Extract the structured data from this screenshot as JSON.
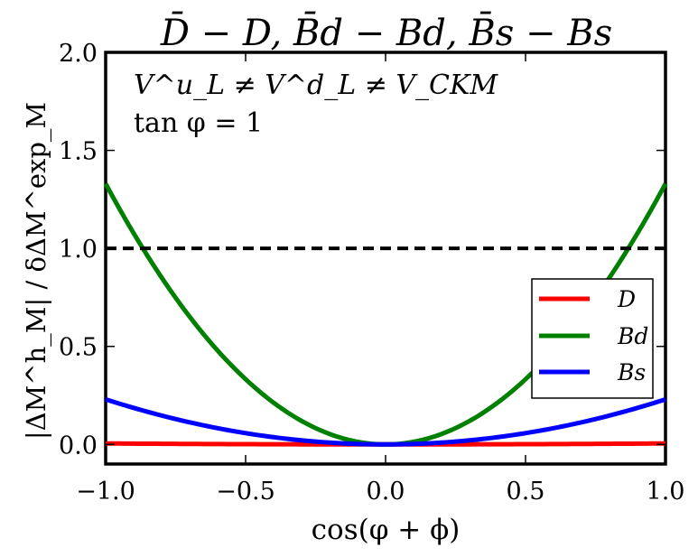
{
  "chart_data": {
    "type": "line",
    "title": "D̄ − D, B̄d − Bd, B̄s − Bs",
    "xlabel": "cos(φ + ϕ)",
    "ylabel": "|ΔM^h_M| / δΔM^exp_M",
    "xlim": [
      -1.0,
      1.0
    ],
    "ylim": [
      -0.1,
      2.0
    ],
    "x_ticks": [
      "−1.0",
      "−0.5",
      "0.0",
      "0.5",
      "1.0"
    ],
    "y_ticks": [
      "0.0",
      "0.5",
      "1.0",
      "1.5",
      "2.0"
    ],
    "grid": false,
    "annotations": [
      "V^u_L ≠ V^d_L ≠ V_CKM",
      "tan φ = 1"
    ],
    "reference_line": {
      "y": 1.0,
      "style": "dashed",
      "color": "#000000"
    },
    "legend": {
      "placement": "center-right"
    },
    "series": [
      {
        "name": "D",
        "color": "#ff0000",
        "x": [
          -1.0,
          -0.5,
          0.0,
          0.5,
          1.0
        ],
        "y": [
          0.005,
          0.0012,
          0.0,
          0.0012,
          0.005
        ]
      },
      {
        "name": "Bd",
        "color": "#008000",
        "x": [
          -1.0,
          -0.75,
          -0.5,
          -0.25,
          0.0,
          0.25,
          0.5,
          0.75,
          1.0
        ],
        "y": [
          1.33,
          0.748,
          0.333,
          0.083,
          0.0,
          0.083,
          0.333,
          0.748,
          1.33
        ]
      },
      {
        "name": "Bs",
        "color": "#0000ff",
        "x": [
          -1.0,
          -0.75,
          -0.5,
          -0.25,
          0.0,
          0.25,
          0.5,
          0.75,
          1.0
        ],
        "y": [
          0.23,
          0.129,
          0.0575,
          0.0144,
          0.0,
          0.0144,
          0.0575,
          0.129,
          0.23
        ]
      }
    ]
  }
}
